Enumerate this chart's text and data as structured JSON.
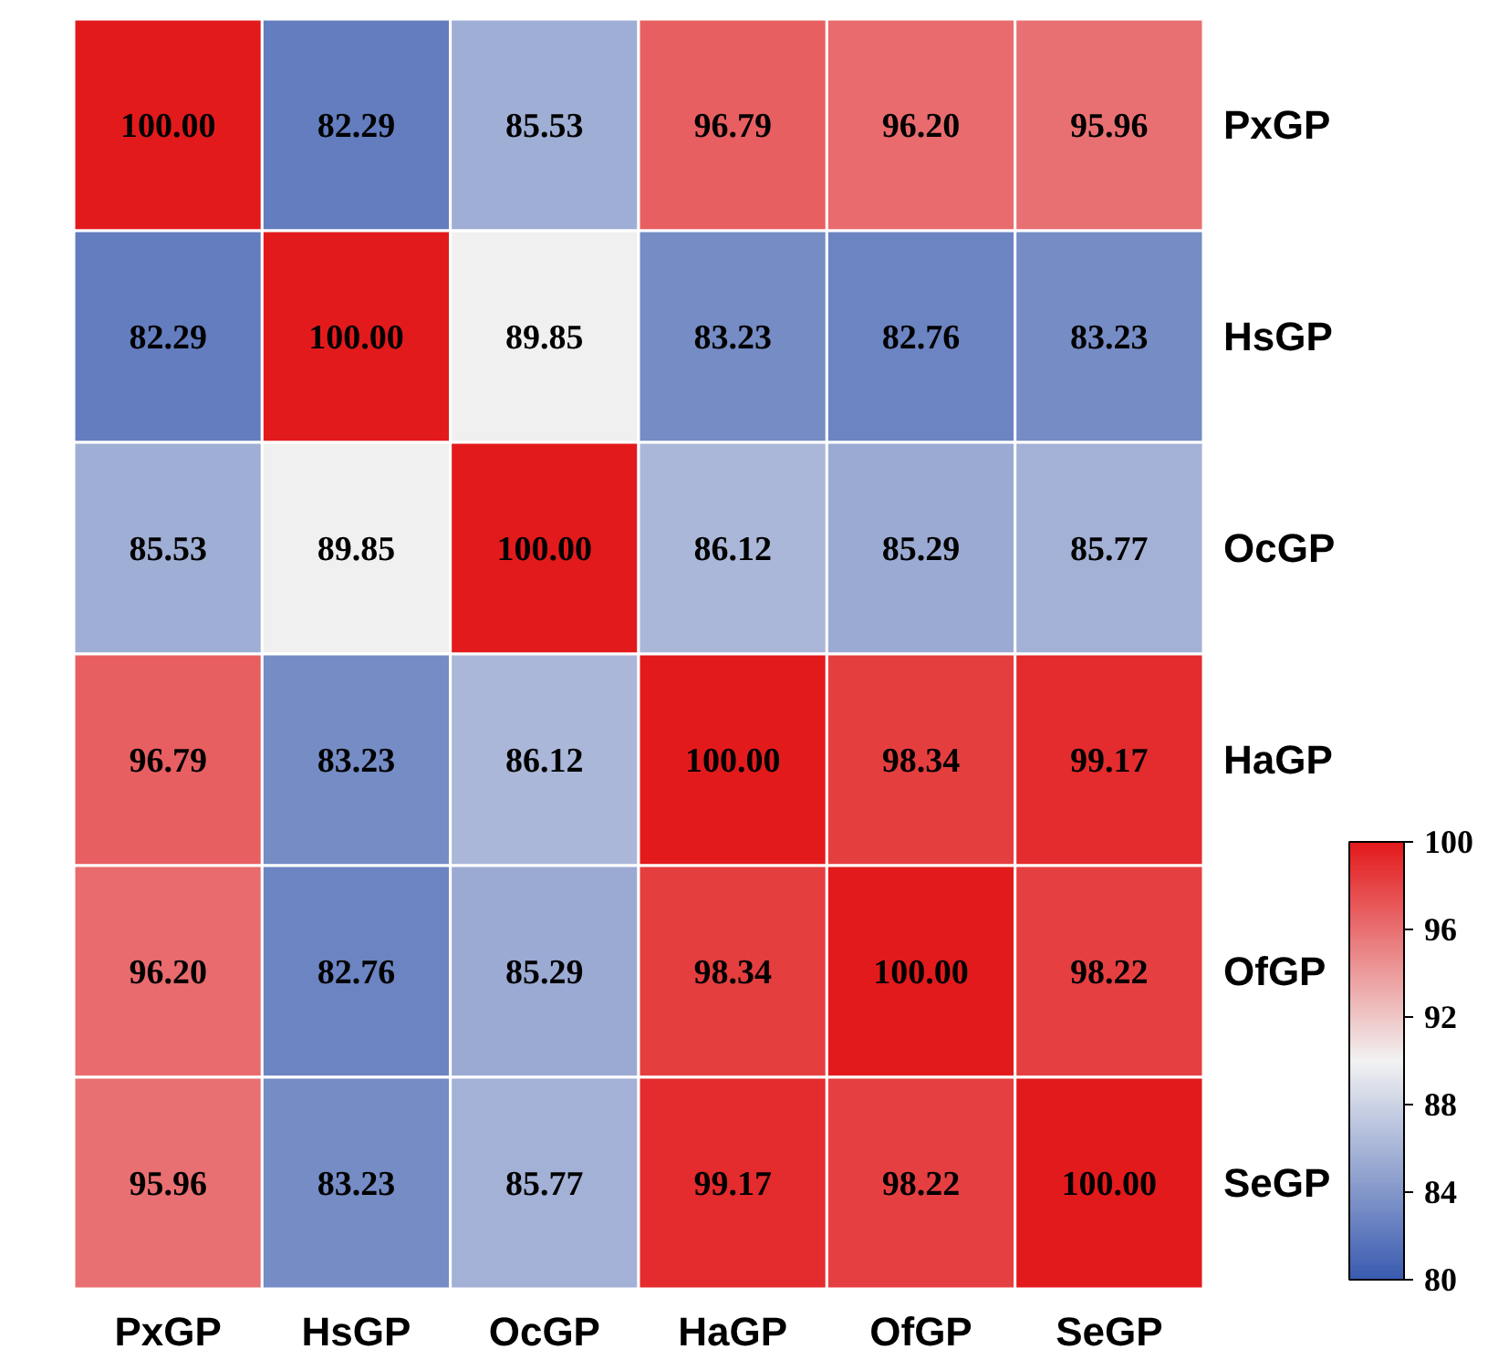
{
  "chart_data": {
    "type": "heatmap",
    "categories": [
      "PxGP",
      "HsGP",
      "OcGP",
      "HaGP",
      "OfGP",
      "SeGP"
    ],
    "y_categories": [
      "PxGP",
      "HsGP",
      "OcGP",
      "HaGP",
      "OfGP",
      "SeGP"
    ],
    "cells": [
      [
        100.0,
        82.29,
        85.53,
        96.79,
        96.2,
        95.96
      ],
      [
        82.29,
        100.0,
        89.85,
        83.23,
        82.76,
        83.23
      ],
      [
        85.53,
        89.85,
        100.0,
        86.12,
        85.29,
        85.77
      ],
      [
        96.79,
        83.23,
        86.12,
        100.0,
        98.34,
        99.17
      ],
      [
        96.2,
        82.76,
        85.29,
        98.34,
        100.0,
        98.22
      ],
      [
        95.96,
        83.23,
        85.77,
        99.17,
        98.22,
        100.0
      ]
    ],
    "cell_labels": [
      [
        "100.00",
        "82.29",
        "85.53",
        "96.79",
        "96.20",
        "95.96"
      ],
      [
        "82.29",
        "100.00",
        "89.85",
        "83.23",
        "82.76",
        "83.23"
      ],
      [
        "85.53",
        "89.85",
        "100.00",
        "86.12",
        "85.29",
        "85.77"
      ],
      [
        "96.79",
        "83.23",
        "86.12",
        "100.00",
        "98.34",
        "99.17"
      ],
      [
        "96.20",
        "82.76",
        "85.29",
        "98.34",
        "100.00",
        "98.22"
      ],
      [
        "95.96",
        "83.23",
        "85.77",
        "99.17",
        "98.22",
        "100.00"
      ]
    ],
    "colors": [
      "#3a5bb0",
      "#f2f2f2",
      "#e31a1c"
    ],
    "clim": [
      80,
      100
    ],
    "cticks": [
      80,
      84,
      88,
      92,
      96,
      100
    ]
  }
}
